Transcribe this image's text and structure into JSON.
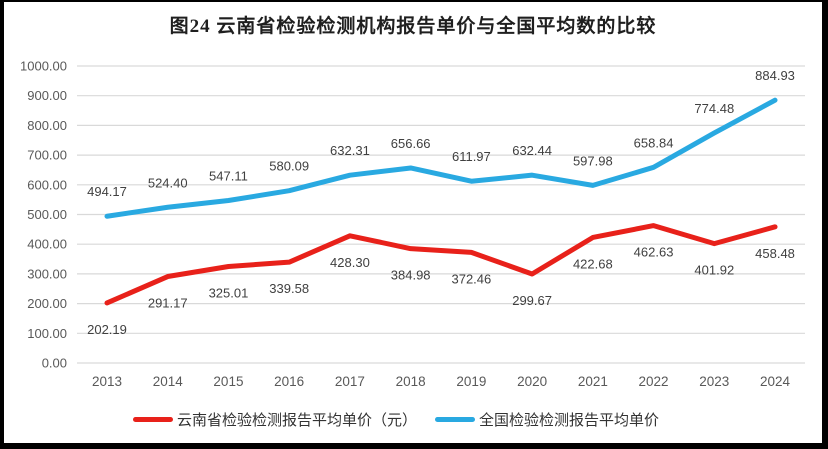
{
  "title": "图24 云南省检验检测机构报告单价与全国平均数的比较",
  "chart_data": {
    "type": "line",
    "categories": [
      "2013",
      "2014",
      "2015",
      "2016",
      "2017",
      "2018",
      "2019",
      "2020",
      "2021",
      "2022",
      "2023",
      "2024"
    ],
    "series": [
      {
        "name": "云南省检验检测报告平均单价（元）",
        "color": "#e8211a",
        "values": [
          202.19,
          291.17,
          325.01,
          339.58,
          428.3,
          384.98,
          372.46,
          299.67,
          422.68,
          462.63,
          401.92,
          458.48
        ],
        "labels": [
          "202.19",
          "291.17",
          "325.01",
          "339.58",
          "428.30",
          "384.98",
          "372.46",
          "299.67",
          "422.68",
          "462.63",
          "401.92",
          "458.48"
        ],
        "label_position": "below"
      },
      {
        "name": "全国检验检测报告平均单价",
        "color": "#29a9e1",
        "values": [
          494.17,
          524.4,
          547.11,
          580.09,
          632.31,
          656.66,
          611.97,
          632.44,
          597.98,
          658.84,
          774.48,
          884.93
        ],
        "labels": [
          "494.17",
          "524.40",
          "547.11",
          "580.09",
          "632.31",
          "656.66",
          "611.97",
          "632.44",
          "597.98",
          "658.84",
          "774.48",
          "884.93"
        ],
        "label_position": "above"
      }
    ],
    "xlabel": "",
    "ylabel": "",
    "ylim": [
      0,
      1000
    ],
    "ytick_step": 100,
    "ytick_labels": [
      "0.00",
      "100.00",
      "200.00",
      "300.00",
      "400.00",
      "500.00",
      "600.00",
      "700.00",
      "800.00",
      "900.00",
      "1000.00"
    ],
    "grid": true,
    "legend_position": "bottom"
  },
  "colors": {
    "grid_line": "#d9d9d9",
    "axis_text": "#595959",
    "data_label": "#404040",
    "title_text": "#1f1f1f",
    "frame_border": "#000000"
  }
}
